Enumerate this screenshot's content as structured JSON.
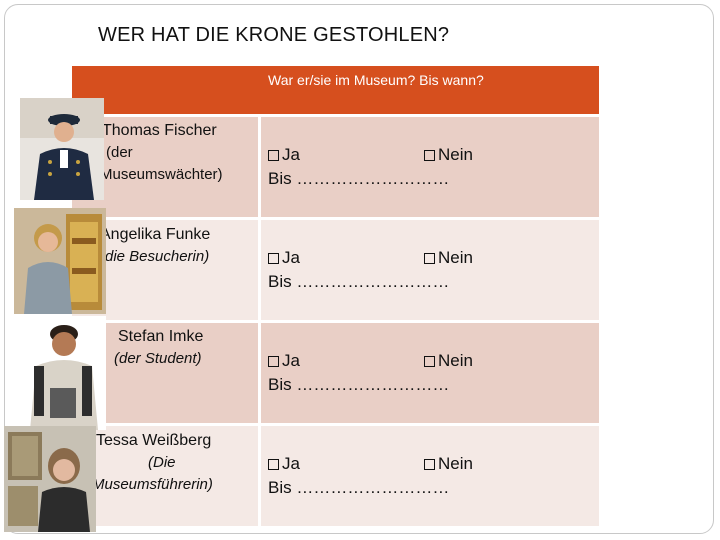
{
  "title": "WER HAT DIE KRONE GESTOHLEN?",
  "table": {
    "header": "War er/sie im Museum? Bis wann?",
    "rows": [
      {
        "name": "Thomas Fischer",
        "role_line1": "(der",
        "role_line2": "Museumswächter)",
        "ja": "Ja",
        "nein": "Nein",
        "bis": "Bis ………………………"
      },
      {
        "name": "Angelika Funke",
        "role_line1": "(die Besucherin)",
        "ja": "Ja",
        "nein": "Nein",
        "bis": "Bis ………………………"
      },
      {
        "name": "Stefan Imke",
        "role_line1": "(der Student)",
        "ja": "Ja",
        "nein": "Nein",
        "bis": "Bis ………………………"
      },
      {
        "name": "Tessa Weißberg",
        "role_line1": "(Die",
        "role_line2": "Museumsführerin)",
        "ja": "Ja",
        "nein": "Nein",
        "bis": "Bis ………………………"
      }
    ]
  }
}
